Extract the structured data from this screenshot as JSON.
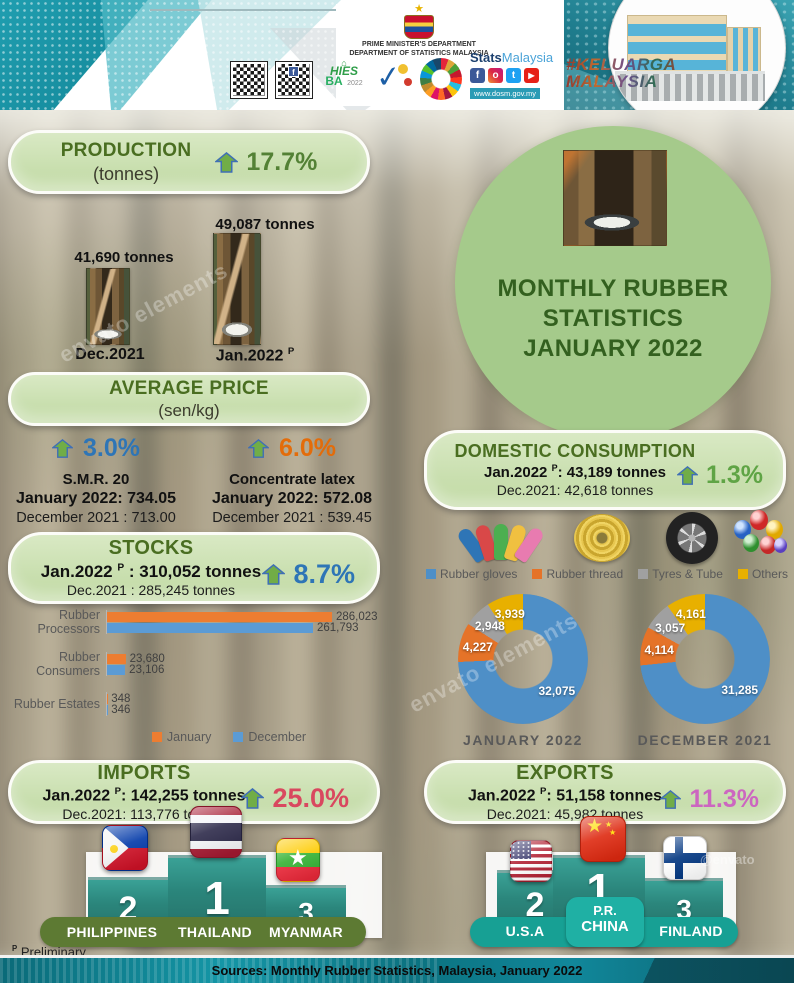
{
  "watermark": {
    "text": "envato elements",
    "badge": "@envato"
  },
  "header": {
    "dept_line1": "PRIME MINISTER'S DEPARTMENT",
    "dept_line2": "DEPARTMENT OF STATISTICS MALAYSIA",
    "stats_bold": "Stats",
    "stats_light": "Malaysia",
    "website": "www.dosm.gov.my",
    "hashtag_line1": "#KELUARGA",
    "hashtag_line2": "MALAYSIA",
    "hies_line1": "HIES",
    "hies_line2": "BA",
    "hies_year": "2022",
    "social": {
      "facebook": "f",
      "instagram": "o",
      "twitter": "t",
      "youtube": "▶"
    }
  },
  "hero": {
    "line1": "MONTHLY RUBBER",
    "line2": "STATISTICS",
    "line3": "JANUARY 2022"
  },
  "production": {
    "title": "PRODUCTION",
    "subtitle": "(tonnes)",
    "change": "17.7%",
    "change_color": "#538135",
    "figures": [
      {
        "value": "41,690 tonnes",
        "label": "Dec.2021",
        "sup": ""
      },
      {
        "value": "49,087 tonnes",
        "label": "Jan.2022",
        "sup": "P"
      }
    ]
  },
  "average_price": {
    "title": "AVERAGE PRICE",
    "subtitle": "(sen/kg)",
    "items": [
      {
        "change": "3.0%",
        "change_color": "#2E75B6",
        "name": "S.M.R. 20",
        "jan": "January 2022: 734.05",
        "dec": "December 2021 : 713.00"
      },
      {
        "change": "6.0%",
        "change_color": "#E36C0A",
        "name": "Concentrate latex",
        "jan": "January 2022: 572.08",
        "dec": "December 2021 : 539.45"
      }
    ]
  },
  "stocks": {
    "title": "STOCKS",
    "jan_pre": "Jan.2022",
    "sup": "P",
    "jan_post": " : 310,052 tonnes",
    "dec_line": "Dec.2021 : 285,245 tonnes",
    "change": "8.7%",
    "change_color": "#2E75B6"
  },
  "domestic": {
    "title": "DOMESTIC CONSUMPTION",
    "jan_pre": "Jan.2022",
    "sup": "P",
    "jan_post": ": 43,189 tonnes",
    "dec_line": "Dec.2021: 42,618 tonnes",
    "change": "1.3%",
    "change_color": "#5FA445",
    "legend": [
      {
        "label": "Rubber gloves",
        "color": "#4E8FC7"
      },
      {
        "label": "Rubber thread",
        "color": "#E57328"
      },
      {
        "label": "Tyres & Tube",
        "color": "#A0A0A0"
      },
      {
        "label": "Others",
        "color": "#E8B000"
      }
    ]
  },
  "imports": {
    "title": "IMPORTS",
    "jan_pre": "Jan.2022",
    "sup": "P",
    "jan_post": ": 142,255 tonnes",
    "dec_line": "Dec.2021: 113,776 tonnes",
    "change": "25.0%",
    "change_color": "#D9485F",
    "podium": [
      {
        "rank": "2",
        "country": "PHILIPPINES"
      },
      {
        "rank": "1",
        "country": "THAILAND"
      },
      {
        "rank": "3",
        "country": "MYANMAR"
      }
    ]
  },
  "exports": {
    "title": "EXPORTS",
    "jan_pre": "Jan.2022",
    "sup": "P",
    "jan_post": ": 51,158 tonnes",
    "dec_line": "Dec.2021: 45,982 tonnes",
    "change": "11.3%",
    "change_color": "#CC66C0",
    "podium": [
      {
        "rank": "2",
        "country": "U.S.A"
      },
      {
        "rank": "1",
        "country_line1": "P.R.",
        "country_line2": "CHINA"
      },
      {
        "rank": "3",
        "country": "FINLAND"
      }
    ]
  },
  "footnote": {
    "sup": "P",
    "text": "Preliminary"
  },
  "footer": {
    "sources": "Sources:  Monthly Rubber Statistics, Malaysia, January 2022"
  },
  "chart_data": [
    {
      "type": "bar",
      "orientation": "horizontal",
      "categories": [
        "Rubber Processors",
        "Rubber Consumers",
        "Rubber Estates"
      ],
      "series": [
        {
          "name": "January",
          "color": "#ED7D31",
          "values": [
            286023,
            23680,
            348
          ],
          "labels": [
            "286,023",
            "23,680",
            "348"
          ]
        },
        {
          "name": "December",
          "color": "#5B9BD5",
          "values": [
            261793,
            23106,
            346
          ],
          "labels": [
            "261,793",
            "23,106",
            "346"
          ]
        }
      ],
      "xlim": [
        0,
        300000
      ],
      "legend_position": "bottom",
      "grid": false
    },
    {
      "type": "pie",
      "subtype": "donut",
      "title": "JANUARY 2022",
      "categories": [
        "Rubber gloves",
        "Rubber thread",
        "Tyres & Tube",
        "Others"
      ],
      "values": [
        32075,
        4227,
        2948,
        3939
      ],
      "labels": [
        "32,075",
        "4,227",
        "2,948",
        "3,939"
      ],
      "colors": [
        "#4E8FC7",
        "#E57328",
        "#A0A0A0",
        "#E8B000"
      ],
      "start_angle": 0,
      "direction": "clockwise"
    },
    {
      "type": "pie",
      "subtype": "donut",
      "title": "DECEMBER 2021",
      "categories": [
        "Rubber gloves",
        "Rubber thread",
        "Tyres & Tube",
        "Others"
      ],
      "values": [
        31285,
        4114,
        3057,
        4161
      ],
      "labels": [
        "31,285",
        "4,114",
        "3,057",
        "4,161"
      ],
      "colors": [
        "#4E8FC7",
        "#E57328",
        "#A0A0A0",
        "#E8B000"
      ],
      "start_angle": 0,
      "direction": "clockwise"
    }
  ]
}
